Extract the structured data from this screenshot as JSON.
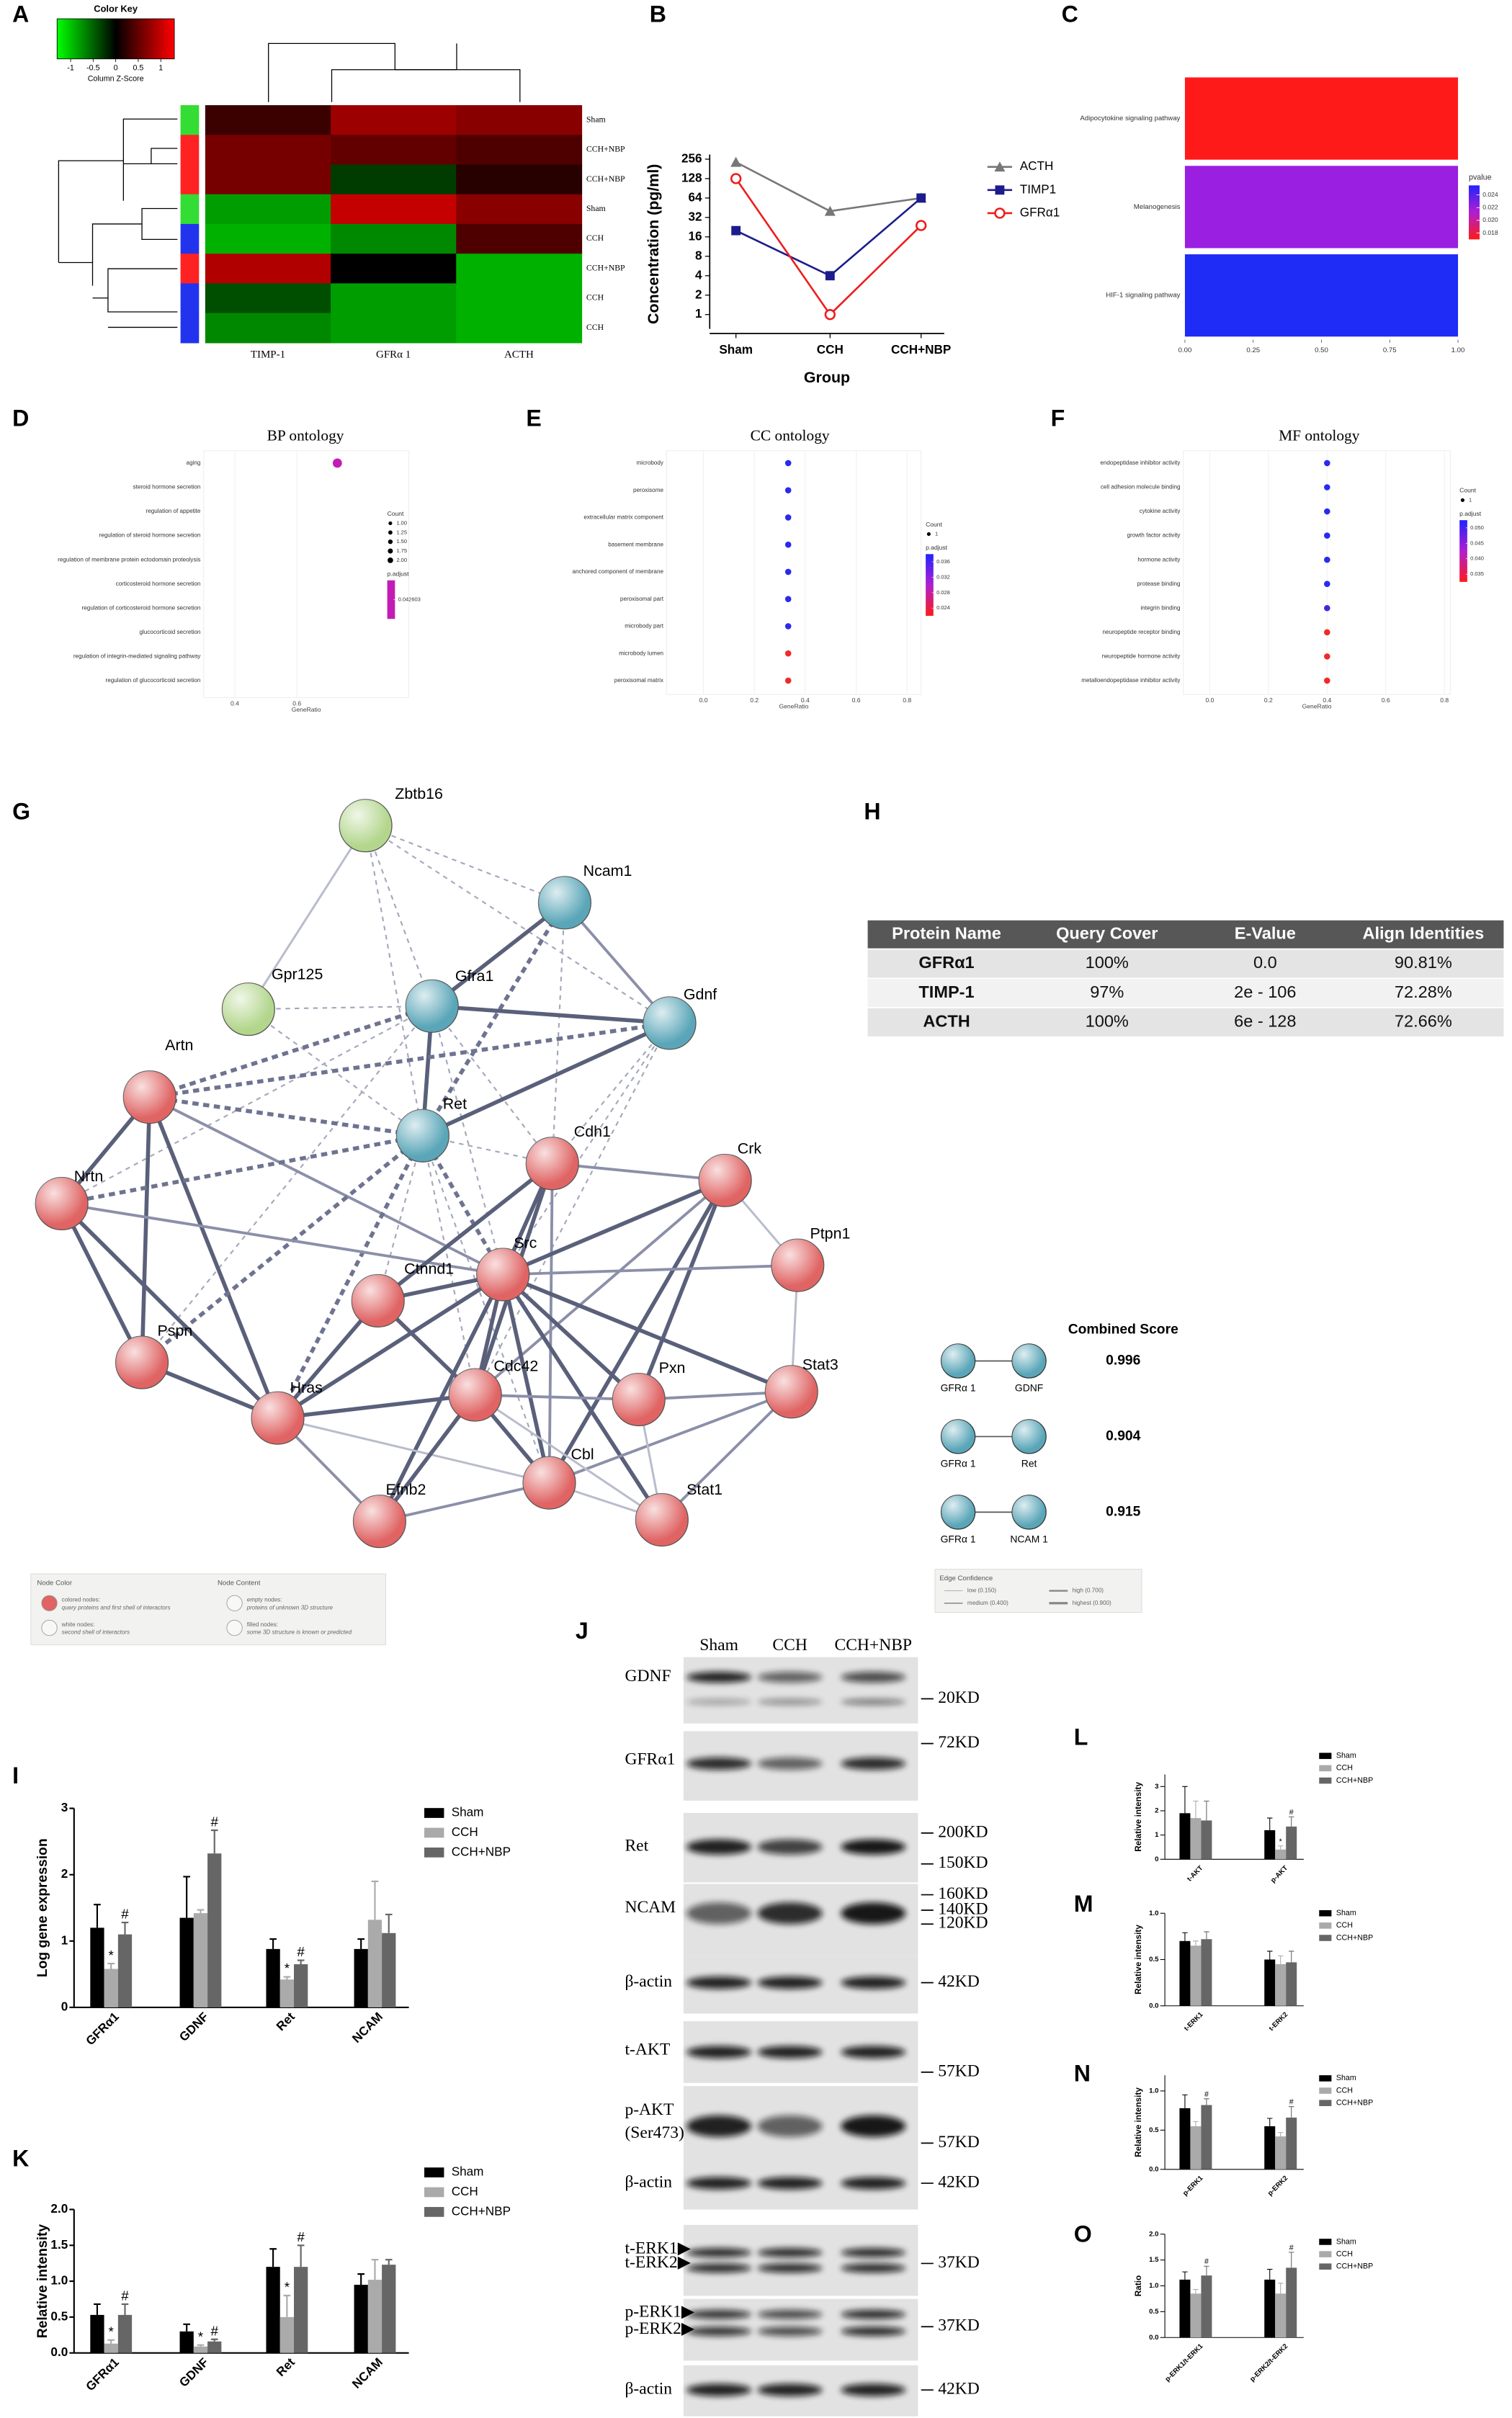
{
  "panel_labels": [
    "A",
    "B",
    "C",
    "D",
    "E",
    "F",
    "G",
    "H",
    "I",
    "J",
    "K",
    "L",
    "M",
    "N",
    "O"
  ],
  "chart_data": [
    {
      "type": "heatmap",
      "color_key": {
        "title": "Color Key",
        "ticks": [
          -1,
          -0.5,
          0,
          0.5,
          1
        ],
        "label": "Column Z-Score",
        "colors": [
          "#00ff00",
          "#000000",
          "#ff0000"
        ]
      },
      "zlim": [
        -1.3,
        1.3
      ],
      "columns": [
        "TIMP-1",
        "GFRα 1",
        "ACTH"
      ],
      "rows": [
        "Sham",
        "CCH+NBP",
        "CCH+NBP",
        "Sham",
        "CCH",
        "CCH+NBP",
        "CCH",
        "CCH"
      ],
      "row_colors": [
        "#33dd33",
        "#ff2222",
        "#ff2222",
        "#33dd33",
        "#2233ee",
        "#ff2222",
        "#2233ee",
        "#2233ee"
      ],
      "values": [
        [
          0.3,
          0.8,
          0.7
        ],
        [
          0.6,
          0.5,
          0.4
        ],
        [
          0.6,
          -0.3,
          0.2
        ],
        [
          -0.8,
          1,
          0.7
        ],
        [
          -0.9,
          -0.7,
          0.4
        ],
        [
          0.9,
          0,
          -0.9
        ],
        [
          -0.4,
          -0.8,
          -0.9
        ],
        [
          -0.7,
          -0.8,
          -0.9
        ]
      ]
    },
    {
      "type": "line",
      "categories": [
        "Sham",
        "CCH",
        "CCH+NBP"
      ],
      "ylabel": "Concentration (pg/ml)",
      "xlabel": "Group",
      "log_scale": true,
      "ylim": [
        0.6,
        256
      ],
      "yticks": [
        1,
        2,
        4,
        8,
        16,
        32,
        64,
        128,
        256
      ],
      "series": [
        {
          "name": "ACTH",
          "color": "#777777",
          "marker": "triangle",
          "values": [
            230,
            40,
            64
          ]
        },
        {
          "name": "TIMP1",
          "color": "#1c1c8c",
          "marker": "square",
          "values": [
            20,
            4,
            64
          ]
        },
        {
          "name": "GFRα1",
          "color": "#ee1c1c",
          "marker": "circle",
          "values": [
            128,
            1,
            24
          ]
        }
      ]
    },
    {
      "type": "hbar",
      "categories": [
        "Adipocytokine signaling pathway",
        "Melanogenesis",
        "HIF-1 signaling pathway"
      ],
      "values": [
        1,
        1,
        1
      ],
      "colors": [
        "#ff1a1a",
        "#9a1fe0",
        "#1f2cf5"
      ],
      "xlim": [
        0,
        1
      ],
      "xticks": [
        {
          "value": 0,
          "label": "0.00"
        },
        {
          "value": 0.25,
          "label": "0.25"
        },
        {
          "value": 0.5,
          "label": "0.50"
        },
        {
          "value": 0.75,
          "label": "0.75"
        },
        {
          "value": 1,
          "label": "1.00"
        }
      ],
      "color_scale": {
        "title": "pvalue",
        "lim": [
          0.017,
          0.0255
        ],
        "ticks": [
          0.024,
          0.022,
          {
            "value": 0.02,
            "label": "0.020"
          },
          0.018
        ]
      }
    },
    {
      "type": "dot",
      "title": "BP ontology",
      "xlabel": "GeneRatio",
      "categories": [
        "aging",
        "steroid hormone secretion",
        "regulation of appetite",
        "regulation of steroid hormone secretion",
        "regulation of membrane protein ectodomain proteolysis",
        "corticosteroid hormone secretion",
        "regulation of corticosteroid hormone secretion",
        "glucocorticoid secretion",
        "regulation of integrin-mediated signaling pathway",
        "regulation of glucocorticoid secretion"
      ],
      "values": [
        0.73,
        null,
        null,
        null,
        null,
        null,
        null,
        null,
        null,
        null
      ],
      "colors": [
        "#c21cb5",
        null,
        null,
        null,
        null,
        null,
        null,
        null,
        null,
        null
      ],
      "xlim": [
        0.3,
        0.96
      ],
      "xticks": [
        0.4,
        0.6
      ],
      "legend": {
        "count_title": "Count",
        "count_ticks": [
          {
            "value": 1,
            "label": "1.00"
          },
          {
            "value": 1.25,
            "label": "1.25"
          },
          {
            "value": 1.5,
            "label": "1.50"
          },
          {
            "value": 1.75,
            "label": "1.75"
          },
          {
            "value": 2,
            "label": "2.00"
          }
        ],
        "padj_title": "p.adjust",
        "padj_ticks": [
          0.042603
        ]
      }
    },
    {
      "type": "dot",
      "title": "CC ontology",
      "xlabel": "GeneRatio",
      "categories": [
        "microbody",
        "peroxisome",
        "extracellular matrix component",
        "basement membrane",
        "anchored component of membrane",
        "peroxisomal part",
        "microbody part",
        "microbody lumen",
        "peroxisomal matrix"
      ],
      "values": [
        0.333,
        0.333,
        0.333,
        0.333,
        0.333,
        0.333,
        0.333,
        0.333,
        0.333
      ],
      "colors": [
        "#2a2aee",
        "#2a2aee",
        "#2a2aee",
        "#2a2aee",
        "#2a2aee",
        "#2a2aee",
        "#2a2aee",
        "#ee2a2a",
        "#ee2a2a"
      ],
      "xlim": [
        -0.145,
        0.855
      ],
      "xticks": [
        {
          "value": 0,
          "label": "0.0"
        },
        0.2,
        0.4,
        0.6,
        0.8
      ],
      "legend": {
        "count_title": "Count",
        "count_ticks": [
          1
        ],
        "padj_title": "p.adjust",
        "padj_ticks": [
          0.036,
          0.032,
          0.028,
          0.024
        ]
      }
    },
    {
      "type": "dot",
      "title": "MF ontology",
      "xlabel": "GeneRatio",
      "categories": [
        "endopeptidase inhibitor activity",
        "cell adhesion molecule binding",
        "cytokine activity",
        "growth factor activity",
        "hormone activity",
        "protease binding",
        "integrin binding",
        "neuropeptide receptor binding",
        "neuropeptide hormone activity",
        "metalloendopeptidase inhibitor activity"
      ],
      "values": [
        0.4,
        0.4,
        0.4,
        0.4,
        0.4,
        0.4,
        0.4,
        0.4,
        0.4,
        0.4
      ],
      "colors": [
        "#2a2aee",
        "#2a2aee",
        "#2a2aee",
        "#2a2aee",
        "#2a2aee",
        "#2a2aee",
        "#3a2ae0",
        "#ee2a2a",
        "#ee2a2a",
        "#ee2a2a"
      ],
      "xlim": [
        -0.09,
        0.82
      ],
      "xticks": [
        {
          "value": 0,
          "label": "0.0"
        },
        0.2,
        0.4,
        0.6,
        0.8
      ],
      "legend": {
        "count_title": "Count",
        "count_ticks": [
          1
        ],
        "padj_title": "p.adjust",
        "padj_ticks": [
          {
            "value": 0.05,
            "label": "0.050"
          },
          0.045,
          {
            "value": 0.04,
            "label": "0.040"
          },
          0.035
        ]
      }
    },
    {
      "type": "bar",
      "ylabel": "Log gene expression",
      "categories": [
        "GFRα1",
        "GDNF",
        "Ret",
        "NCAM"
      ],
      "ylim": [
        0,
        3
      ],
      "yticks": [
        0,
        1,
        2,
        3
      ],
      "series": [
        {
          "name": "Sham",
          "color": "#000000",
          "values": [
            1.2,
            1.35,
            0.88,
            0.88
          ],
          "errors": [
            0.35,
            0.62,
            0.15,
            0.15
          ]
        },
        {
          "name": "CCH",
          "color": "#aaaaaa",
          "values": [
            0.58,
            1.42,
            0.42,
            1.32
          ],
          "errors": [
            0.08,
            0.05,
            0.04,
            0.58
          ],
          "significance": [
            "*",
            null,
            "*",
            null
          ]
        },
        {
          "name": "CCH+NBP",
          "color": "#666666",
          "values": [
            1.1,
            2.32,
            0.65,
            1.12
          ],
          "errors": [
            0.18,
            0.35,
            0.06,
            0.28
          ],
          "significance": [
            "#",
            "#",
            "#",
            null
          ]
        }
      ]
    },
    {
      "type": "bar",
      "ylabel": "Relative intensity",
      "categories": [
        "GFRα1",
        "GDNF",
        "Ret",
        "NCAM"
      ],
      "ylim": [
        0,
        2
      ],
      "yticks": [
        {
          "value": 0,
          "label": "0.0"
        },
        0.5,
        {
          "value": 1,
          "label": "1.0"
        },
        1.5,
        {
          "value": 2,
          "label": "2.0"
        }
      ],
      "series": [
        {
          "name": "Sham",
          "color": "#000000",
          "values": [
            0.53,
            0.3,
            1.2,
            0.95
          ],
          "errors": [
            0.15,
            0.1,
            0.25,
            0.15
          ]
        },
        {
          "name": "CCH",
          "color": "#aaaaaa",
          "values": [
            0.13,
            0.09,
            0.5,
            1.02
          ],
          "errors": [
            0.05,
            0.02,
            0.3,
            0.28
          ],
          "significance": [
            "*",
            "*",
            "*",
            null
          ]
        },
        {
          "name": "CCH+NBP",
          "color": "#666666",
          "values": [
            0.53,
            0.16,
            1.2,
            1.23
          ],
          "errors": [
            0.15,
            0.03,
            0.3,
            0.07
          ],
          "significance": [
            "#",
            "#",
            "#",
            null
          ]
        }
      ]
    },
    {
      "type": "bar",
      "ylabel": "Relative intensity",
      "categories": [
        "t-AKT",
        "p-AKT"
      ],
      "ylim": [
        0,
        3.5
      ],
      "yticks": [
        0,
        1,
        2,
        3
      ],
      "series": [
        {
          "name": "Sham",
          "color": "#000000",
          "values": [
            1.9,
            1.2
          ],
          "errors": [
            1.1,
            0.5
          ]
        },
        {
          "name": "CCH",
          "color": "#aaaaaa",
          "values": [
            1.7,
            0.4
          ],
          "errors": [
            0.7,
            0.15
          ],
          "significance": [
            null,
            "*"
          ]
        },
        {
          "name": "CCH+NBP",
          "color": "#666666",
          "values": [
            1.6,
            1.35
          ],
          "errors": [
            0.8,
            0.4
          ],
          "significance": [
            null,
            "#"
          ]
        }
      ]
    },
    {
      "type": "bar",
      "ylabel": "Relative intensity",
      "categories": [
        "t-ERK1",
        "t-ERK2"
      ],
      "ylim": [
        0,
        1
      ],
      "yticks": [
        {
          "value": 0,
          "label": "0.0"
        },
        0.5,
        {
          "value": 1,
          "label": "1.0"
        }
      ],
      "series": [
        {
          "name": "Sham",
          "color": "#000000",
          "values": [
            0.7,
            0.5
          ],
          "errors": [
            0.09,
            0.09
          ]
        },
        {
          "name": "CCH",
          "color": "#aaaaaa",
          "values": [
            0.65,
            0.45
          ],
          "errors": [
            0.05,
            0.09
          ]
        },
        {
          "name": "CCH+NBP",
          "color": "#666666",
          "values": [
            0.72,
            0.47
          ],
          "errors": [
            0.08,
            0.12
          ]
        }
      ]
    },
    {
      "type": "bar",
      "ylabel": "Relative intensity",
      "categories": [
        "p-ERK1",
        "p-ERK2"
      ],
      "ylim": [
        0,
        1.2
      ],
      "yticks": [
        {
          "value": 0,
          "label": "0.0"
        },
        0.5,
        {
          "value": 1,
          "label": "1.0"
        }
      ],
      "series": [
        {
          "name": "Sham",
          "color": "#000000",
          "values": [
            0.78,
            0.55
          ],
          "errors": [
            0.17,
            0.1
          ]
        },
        {
          "name": "CCH",
          "color": "#aaaaaa",
          "values": [
            0.55,
            0.42
          ],
          "errors": [
            0.06,
            0.05
          ]
        },
        {
          "name": "CCH+NBP",
          "color": "#666666",
          "values": [
            0.82,
            0.66
          ],
          "errors": [
            0.08,
            0.14
          ],
          "significance": [
            "#",
            "#"
          ]
        }
      ]
    },
    {
      "type": "bar",
      "ylabel": "Ratio",
      "categories": [
        "p-ERK1/t-ERK1",
        "p-ERK2/t-ERK2"
      ],
      "ylim": [
        0,
        2
      ],
      "yticks": [
        {
          "value": 0,
          "label": "0.0"
        },
        0.5,
        {
          "value": 1,
          "label": "1.0"
        },
        1.5,
        {
          "value": 2,
          "label": "2.0"
        }
      ],
      "series": [
        {
          "name": "Sham",
          "color": "#000000",
          "values": [
            1.12,
            1.12
          ],
          "errors": [
            0.15,
            0.2
          ]
        },
        {
          "name": "CCH",
          "color": "#aaaaaa",
          "values": [
            0.85,
            0.85
          ],
          "errors": [
            0.08,
            0.2
          ]
        },
        {
          "name": "CCH+NBP",
          "color": "#666666",
          "values": [
            1.2,
            1.35
          ],
          "errors": [
            0.18,
            0.3
          ],
          "significance": [
            "#",
            "#"
          ]
        }
      ]
    }
  ],
  "network": {
    "nodes": [
      {
        "label": "Zbtb16",
        "color": "#b3d68c"
      },
      {
        "label": "Ncam1",
        "color": "#5aa6b8"
      },
      {
        "label": "Gpr125",
        "color": "#b3d68c"
      },
      {
        "label": "Gfra1",
        "color": "#5aa6b8"
      },
      {
        "label": "Gdnf",
        "color": "#5aa6b8"
      },
      {
        "label": "Artn",
        "color": "#e06464"
      },
      {
        "label": "Ret",
        "color": "#5aa6b8"
      },
      {
        "label": "Cdh1",
        "color": "#e06464"
      },
      {
        "label": "Crk",
        "color": "#e06464"
      },
      {
        "label": "Nrtn",
        "color": "#e06464"
      },
      {
        "label": "Ptpn1",
        "color": "#e06464"
      },
      {
        "label": "Src",
        "color": "#e06464"
      },
      {
        "label": "Ctnnd1",
        "color": "#e06464"
      },
      {
        "label": "Pspn",
        "color": "#e06464"
      },
      {
        "label": "Stat3",
        "color": "#e06464"
      },
      {
        "label": "Hras",
        "color": "#e06464"
      },
      {
        "label": "Cdc42",
        "color": "#e06464"
      },
      {
        "label": "Pxn",
        "color": "#e06464"
      },
      {
        "label": "Cbl",
        "color": "#e06464"
      },
      {
        "label": "Efnb2",
        "color": "#e06464"
      },
      {
        "label": "Stat1",
        "color": "#e06464"
      }
    ],
    "legend": {
      "color_title": "Node Color",
      "content_title": "Node Content",
      "items": [
        [
          "colored nodes:",
          "query proteins and first shell of interactors"
        ],
        [
          "white nodes:",
          "second shell of interactors"
        ],
        [
          "empty nodes:",
          "proteins of unknown 3D structure"
        ],
        [
          "filled nodes:",
          "some 3D structure is known or predicted"
        ]
      ]
    }
  },
  "table": {
    "header": [
      "Protein Name",
      "Query Cover",
      "E-Value",
      "Align Identities"
    ],
    "rows": [
      [
        "GFRα1",
        "100%",
        "0.0",
        "90.81%"
      ],
      [
        "TIMP-1",
        "97%",
        "2e - 106",
        "72.28%"
      ],
      [
        "ACTH",
        "100%",
        "6e - 128",
        "72.66%"
      ]
    ]
  },
  "scores": {
    "title": "Combined Score",
    "pairs": [
      {
        "a": "GFRα 1",
        "b": "GDNF",
        "score": 0.996
      },
      {
        "a": "GFRα 1",
        "b": "Ret",
        "score": 0.904
      },
      {
        "a": "GFRα 1",
        "b": "NCAM 1",
        "score": 0.915
      }
    ]
  },
  "edge_confidence": {
    "title": "Edge Confidence",
    "items": [
      "low (0.150)",
      "medium (0.400)",
      "high (0.700)",
      "highest (0.900)"
    ]
  },
  "blots": {
    "lanes": [
      "Sham",
      "CCH",
      "CCH+NBP"
    ],
    "rows": [
      {
        "label": [
          "GDNF"
        ],
        "markers": [
          "20KD"
        ]
      },
      {
        "label": [
          "GFRα1"
        ],
        "markers": [
          "72KD"
        ]
      },
      {
        "label": [
          "Ret"
        ],
        "markers": [
          "200KD",
          "150KD"
        ]
      },
      {
        "label": [
          "NCAM"
        ],
        "markers": [
          "160KD",
          "140KD",
          "120KD"
        ]
      },
      {
        "label": [
          "β-actin"
        ],
        "markers": [
          "42KD"
        ]
      },
      {
        "label": [
          "t-AKT"
        ],
        "markers": [
          "57KD"
        ]
      },
      {
        "label": [
          "p-AKT",
          "(Ser473)"
        ],
        "markers": [
          "57KD"
        ]
      },
      {
        "label": [
          "β-actin"
        ],
        "markers": [
          "42KD"
        ]
      },
      {
        "label": [
          "t-ERK1▶",
          "t-ERK2▶"
        ],
        "markers": [
          "37KD"
        ]
      },
      {
        "label": [
          "p-ERK1▶",
          "p-ERK2▶"
        ],
        "markers": [
          "37KD"
        ]
      },
      {
        "label": [
          "β-actin"
        ],
        "markers": [
          "42KD"
        ]
      }
    ]
  }
}
